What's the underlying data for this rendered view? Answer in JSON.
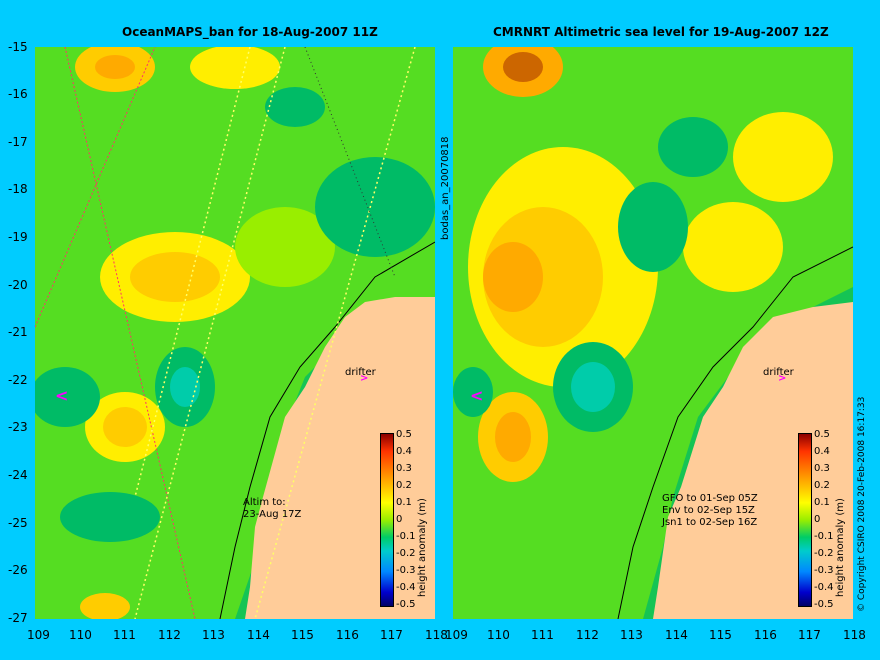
{
  "left_panel": {
    "title": "OceanMAPS_ban for 18-Aug-2007 11Z",
    "annotation": "Altim to:\n23-Aug 17Z",
    "drifter": "drifter",
    "vertical_label": "bodas_an_20070818"
  },
  "right_panel": {
    "title": "CMRNRT Altimetric sea level  for 19-Aug-2007 12Z",
    "annotation": "GFO to 01-Sep 05Z\nEnv to 02-Sep 15Z\nJsn1 to 02-Sep 16Z",
    "drifter": "drifter",
    "copyright": "© Copyright CSIRO 2008    20-Feb-2008 16:17:33"
  },
  "y_ticks": [
    "-15",
    "-16",
    "-17",
    "-18",
    "-19",
    "-20",
    "-21",
    "-22",
    "-23",
    "-24",
    "-25",
    "-26",
    "-27"
  ],
  "x_ticks": [
    "109",
    "110",
    "111",
    "112",
    "113",
    "114",
    "115",
    "116",
    "117",
    "118"
  ],
  "colorbar": {
    "label": "height anomaly (m)",
    "ticks": [
      "0.5",
      "0.4",
      "0.3",
      "0.2",
      "0.1",
      "0",
      "-0.1",
      "-0.2",
      "-0.3",
      "-0.4",
      "-0.5"
    ]
  },
  "drifter_arrow": ">",
  "left_marker": "<",
  "colors": {
    "background": "#00ccff",
    "land": "#ffcc99",
    "ocean_base": "#66dd22",
    "warm": "#ffcc00",
    "cool": "#00bb66"
  }
}
